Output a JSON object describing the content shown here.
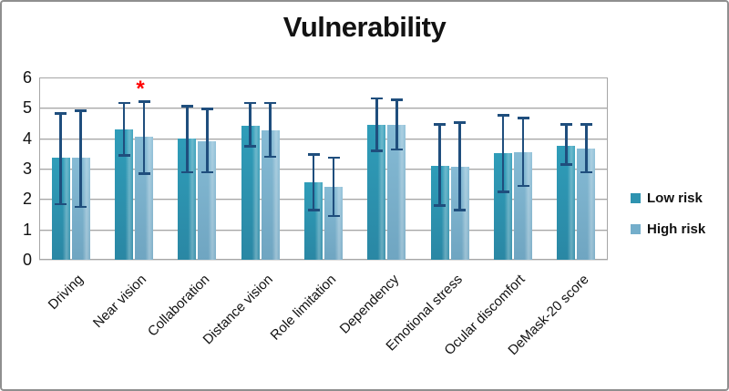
{
  "title": "Vulnerability",
  "legend": {
    "items": [
      {
        "label": "Low risk",
        "color": "#2E93B0"
      },
      {
        "label": "High risk",
        "color": "#74AECB"
      }
    ]
  },
  "colors": {
    "error_bar": "#1F4E7D",
    "gridline": "#A6A6A6",
    "marker_red": "#FF0000",
    "frame_border": "#8F8F8F"
  },
  "chart_data": {
    "type": "bar",
    "title": "Vulnerability",
    "categories": [
      "Driving",
      "Near vision",
      "Collaboration",
      "Distance vision",
      "Role limitation",
      "Dependency",
      "Emotional stress",
      "Ocular discomfort",
      "DeMask-20 score"
    ],
    "series": [
      {
        "name": "Low risk",
        "color": "#2E93B0",
        "values": [
          3.35,
          4.3,
          4.0,
          4.4,
          2.55,
          4.45,
          3.1,
          3.5,
          3.75
        ],
        "error_low": [
          1.8,
          3.4,
          2.85,
          3.7,
          1.6,
          3.55,
          1.75,
          2.2,
          3.1
        ],
        "error_high": [
          4.85,
          5.2,
          5.1,
          5.2,
          3.5,
          5.35,
          4.5,
          4.8,
          4.5
        ]
      },
      {
        "name": "High risk",
        "color": "#74AECB",
        "values": [
          3.35,
          4.05,
          3.9,
          4.25,
          2.4,
          4.45,
          3.05,
          3.55,
          3.65
        ],
        "error_low": [
          1.7,
          2.8,
          2.85,
          3.35,
          1.4,
          3.6,
          1.6,
          2.4,
          2.85
        ],
        "error_high": [
          4.95,
          5.25,
          5.0,
          5.2,
          3.4,
          5.3,
          4.55,
          4.7,
          4.5
        ]
      }
    ],
    "xlabel": "",
    "ylabel": "",
    "ylim": [
      0,
      6
    ],
    "yticks": [
      0,
      1,
      2,
      3,
      4,
      5,
      6
    ],
    "grid": true,
    "legend_position": "right",
    "error_bars": true,
    "significance_marker": {
      "symbol": "*",
      "color": "#FF0000",
      "category": "Near vision",
      "series": "High risk"
    }
  }
}
